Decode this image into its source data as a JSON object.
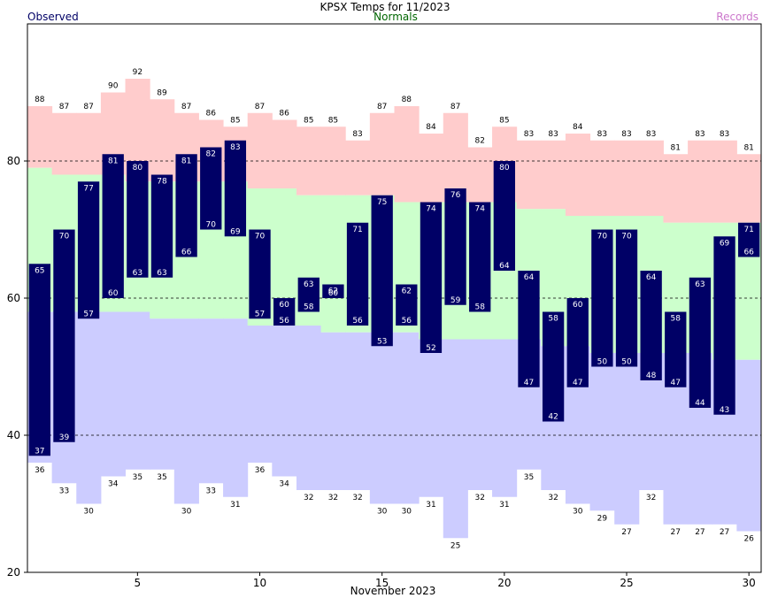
{
  "chart_data": {
    "type": "bar",
    "title": "KPSX Temps for 11/2023",
    "xlabel": "November 2023",
    "ylabel": "",
    "ylim": [
      20,
      100
    ],
    "xlim": [
      0.5,
      30.5
    ],
    "grid_values": [
      40,
      60,
      80
    ],
    "grid": "dashed",
    "legend": [
      {
        "name": "Observed",
        "color": "#000066",
        "placement": "top-left"
      },
      {
        "name": "Normals",
        "color": "#006600",
        "placement": "top-center"
      },
      {
        "name": "Records",
        "color": "#cc77cc",
        "placement": "top-right"
      }
    ],
    "x_ticks": [
      5,
      10,
      15,
      20,
      25,
      30
    ],
    "y_ticks": [
      20,
      40,
      60,
      80
    ],
    "days": [
      1,
      2,
      3,
      4,
      5,
      6,
      7,
      8,
      9,
      10,
      11,
      12,
      13,
      14,
      15,
      16,
      17,
      18,
      19,
      20,
      21,
      22,
      23,
      24,
      25,
      26,
      27,
      28,
      29,
      30
    ],
    "series": [
      {
        "name": "Observed",
        "high": [
          65,
          70,
          77,
          81,
          80,
          78,
          81,
          82,
          83,
          70,
          60,
          63,
          62,
          71,
          75,
          62,
          74,
          76,
          74,
          80,
          64,
          58,
          60,
          70,
          70,
          64,
          58,
          63,
          69,
          71
        ],
        "low": [
          37,
          39,
          57,
          60,
          63,
          63,
          66,
          70,
          69,
          57,
          56,
          58,
          60,
          56,
          53,
          56,
          52,
          59,
          58,
          64,
          47,
          42,
          47,
          50,
          50,
          48,
          47,
          44,
          43,
          66
        ]
      },
      {
        "name": "Normals",
        "high": [
          79,
          78,
          78,
          78,
          77,
          77,
          77,
          77,
          77,
          76,
          76,
          75,
          75,
          75,
          75,
          74,
          74,
          74,
          74,
          74,
          73,
          73,
          72,
          72,
          72,
          72,
          71,
          71,
          71,
          71
        ],
        "low": [
          58,
          58,
          58,
          58,
          58,
          57,
          57,
          57,
          57,
          56,
          56,
          56,
          55,
          55,
          55,
          55,
          54,
          54,
          54,
          54,
          54,
          53,
          53,
          52,
          52,
          52,
          52,
          52,
          51,
          51
        ]
      },
      {
        "name": "Records",
        "high": [
          88,
          87,
          87,
          90,
          92,
          89,
          87,
          86,
          85,
          87,
          86,
          85,
          85,
          83,
          87,
          88,
          84,
          87,
          82,
          85,
          83,
          83,
          84,
          83,
          83,
          83,
          81,
          83,
          83,
          81
        ],
        "low": [
          36,
          33,
          30,
          34,
          35,
          35,
          30,
          33,
          31,
          36,
          34,
          32,
          32,
          32,
          30,
          30,
          31,
          25,
          32,
          31,
          35,
          32,
          30,
          29,
          27,
          32,
          27,
          27,
          27,
          26
        ]
      }
    ],
    "colors": {
      "observed_bar": "#000066",
      "record_band": "#ffcccc",
      "normal_band": "#ccffcc",
      "cold_band": "#ccccff",
      "normals_text": "#006600",
      "records_text": "#cc77cc",
      "observed_text": "#000066"
    }
  }
}
